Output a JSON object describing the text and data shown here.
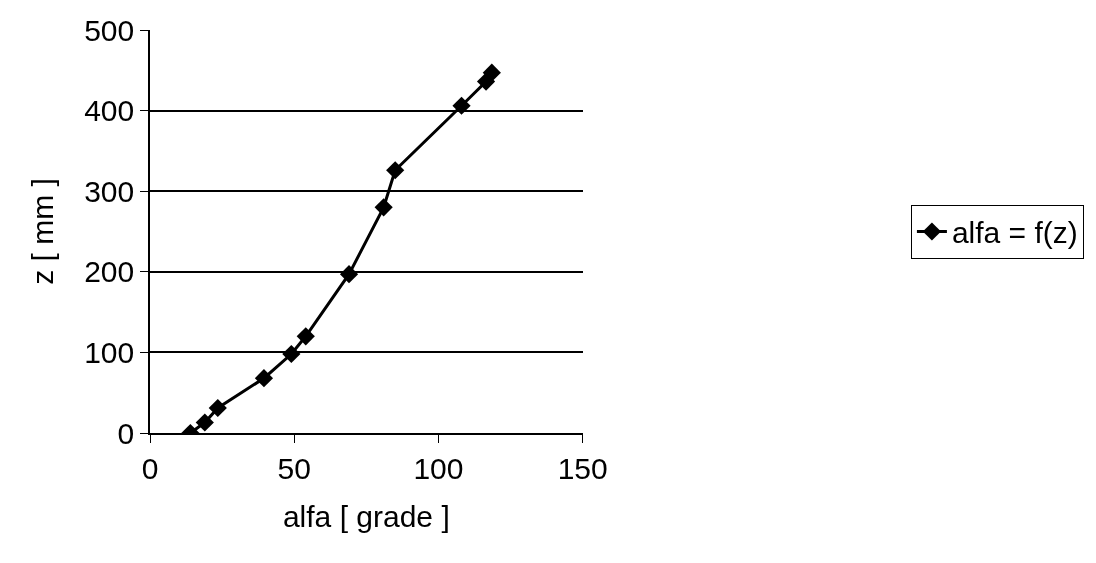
{
  "chart_data": {
    "type": "line",
    "xlabel": "alfa [ grade ]",
    "ylabel": "z [ mm ]",
    "x": [
      14,
      19,
      23.5,
      39.5,
      49,
      54,
      69,
      81,
      85,
      108,
      116.5,
      118.5
    ],
    "series": [
      {
        "name": "alfa = f(z)",
        "color": "#000000",
        "values": [
          0,
          13,
          31,
          68,
          98,
          120,
          197,
          280,
          326,
          406,
          436,
          447
        ]
      }
    ],
    "xlim": [
      0,
      150
    ],
    "xticks": [
      0,
      50,
      100,
      150
    ],
    "ylim": [
      0,
      500
    ],
    "yticks": [
      0,
      100,
      200,
      300,
      400,
      500
    ],
    "grid": "y",
    "legend": "right",
    "marker": "diamond",
    "line_style": "solid"
  }
}
